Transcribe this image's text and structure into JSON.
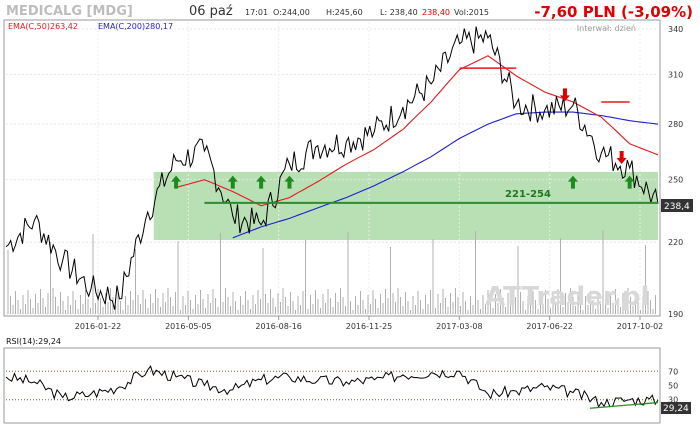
{
  "header": {
    "ticker": "MEDICALG [MDG]",
    "date": "06 paź",
    "time": "17:01",
    "open": "O:244,00",
    "high": "H:245,60",
    "low": "L: 238,40",
    "close": "238,40",
    "volume": "Vol:2015",
    "change": "-7,60 PLN (-3,09%)",
    "interval": "Interwał: dzień",
    "ema50": "EMA(C,50)263,42",
    "ema200": "EMA(C,200)280,17"
  },
  "colors": {
    "price": "#000000",
    "ema50": "#e41a1c",
    "ema200": "#1f1fd0",
    "zone_fill": "#b9dfb5",
    "support": "#2e8b2e",
    "arrow_up": "#1d8a1d",
    "arrow_down": "#e00000",
    "resistance": "#e41a1c",
    "change": "#e00000",
    "volume": "#b0b0b0",
    "rsi_line": "#000000",
    "rsi_ref": "#8b5a2b"
  },
  "annotations": {
    "zone_label": "221-254",
    "last_price_label": "238,4",
    "watermark": "ATTrader.pl"
  },
  "chart_data": [
    {
      "type": "line",
      "title": "MEDICALG [MDG]",
      "y_scale": "log",
      "ylim": [
        190,
        345
      ],
      "y_ticks": [
        190,
        220,
        250,
        280,
        310,
        340
      ],
      "x_tick_labels": [
        "2016-01-22",
        "2016-05-05",
        "2016-08-16",
        "2016-11-25",
        "2017-03-08",
        "2017-06-22",
        "2017-10-02"
      ],
      "x": [
        "2015-11",
        "2015-12",
        "2016-01",
        "2016-02",
        "2016-03",
        "2016-04",
        "2016-05",
        "2016-06",
        "2016-07",
        "2016-08",
        "2016-09",
        "2016-10",
        "2016-11",
        "2016-12",
        "2017-01",
        "2017-02",
        "2017-03",
        "2017-04",
        "2017-05",
        "2017-06",
        "2017-07",
        "2017-08",
        "2017-09",
        "2017-10"
      ],
      "series": [
        {
          "name": "Close",
          "values": [
            218,
            230,
            212,
            200,
            196,
            234,
            260,
            265,
            232,
            228,
            258,
            268,
            270,
            276,
            290,
            304,
            330,
            334,
            292,
            288,
            291,
            264,
            256,
            238
          ]
        },
        {
          "name": "EMA(C,50)",
          "values": [
            null,
            null,
            null,
            null,
            null,
            null,
            246,
            250,
            244,
            237,
            241,
            249,
            258,
            266,
            277,
            293,
            313,
            322,
            309,
            299,
            293,
            284,
            269,
            263
          ]
        },
        {
          "name": "EMA(C,200)",
          "values": [
            null,
            null,
            null,
            null,
            null,
            null,
            null,
            null,
            222,
            227,
            231,
            236,
            241,
            247,
            254,
            262,
            272,
            280,
            286,
            287,
            287,
            285,
            282,
            280
          ]
        }
      ],
      "support_zone": [
        221,
        254
      ],
      "support_line": 238.4,
      "resistance_lines": [
        {
          "from": "2017-03",
          "to": "2017-05",
          "value": 314
        },
        {
          "from": "2017-08",
          "to": "2017-09",
          "value": 293
        }
      ],
      "buy_arrows": [
        "2016-05",
        "2016-07",
        "2016-08",
        "2016-09",
        "2017-07",
        "2017-09"
      ],
      "sell_arrows": [
        "2017-07",
        "2017-09"
      ]
    },
    {
      "type": "line",
      "title": "RSI(14):29,24",
      "ylim": [
        0,
        100
      ],
      "y_ticks": [
        30,
        50,
        70
      ],
      "reference_lines": [
        30,
        70
      ],
      "x": [
        "2015-11",
        "2015-12",
        "2016-01",
        "2016-02",
        "2016-03",
        "2016-04",
        "2016-05",
        "2016-06",
        "2016-07",
        "2016-08",
        "2016-09",
        "2016-10",
        "2016-11",
        "2016-12",
        "2017-01",
        "2017-02",
        "2017-03",
        "2017-04",
        "2017-05",
        "2017-06",
        "2017-07",
        "2017-08",
        "2017-09",
        "2017-10"
      ],
      "values": [
        62,
        55,
        33,
        38,
        48,
        72,
        62,
        50,
        44,
        58,
        62,
        57,
        55,
        58,
        65,
        68,
        70,
        38,
        42,
        48,
        40,
        26,
        30,
        29.24
      ],
      "last_value_label": "29,24"
    }
  ]
}
